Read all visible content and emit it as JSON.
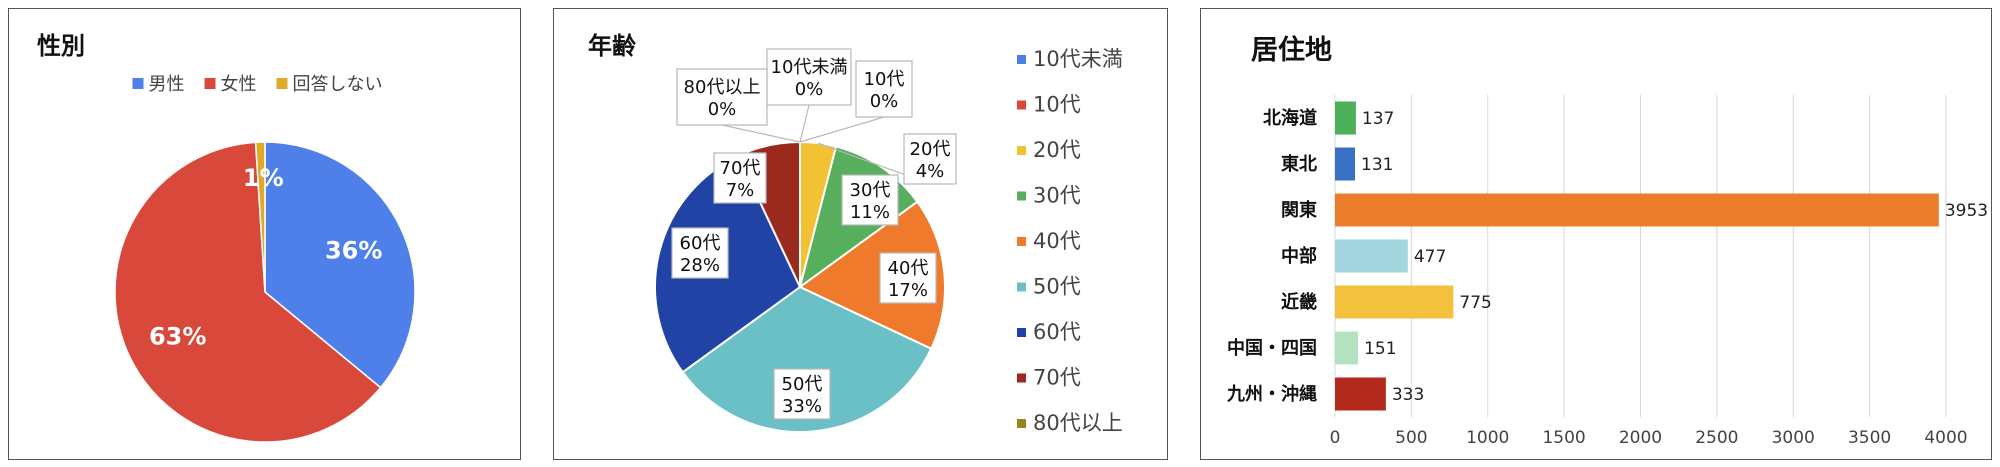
{
  "chart_data": [
    {
      "type": "pie",
      "title": "性別",
      "legend_position": "top",
      "categories": [
        "男性",
        "女性",
        "回答しない"
      ],
      "values": [
        36,
        63,
        1
      ],
      "labels": [
        "36%",
        "63%",
        "1%"
      ],
      "colors": [
        "#4f7fe8",
        "#d9493b",
        "#e0a92a"
      ]
    },
    {
      "type": "pie",
      "title": "年齢",
      "legend_position": "right",
      "categories": [
        "10代未満",
        "10代",
        "20代",
        "30代",
        "40代",
        "50代",
        "60代",
        "70代",
        "80代以上"
      ],
      "values": [
        0,
        0,
        4,
        11,
        17,
        33,
        28,
        7,
        0
      ],
      "labels": [
        "10代未満\n0%",
        "10代\n0%",
        "20代\n4%",
        "30代\n11%",
        "40代\n17%",
        "50代\n33%",
        "60代\n28%",
        "70代\n7%",
        "80代以上\n0%"
      ],
      "colors": [
        "#4a7ee0",
        "#d8473a",
        "#f2c234",
        "#57ae5d",
        "#ef7a2c",
        "#6bbfc6",
        "#2243a6",
        "#9b2a1e",
        "#9a8420"
      ]
    },
    {
      "type": "bar",
      "orientation": "horizontal",
      "title": "居住地",
      "categories": [
        "北海道",
        "東北",
        "関東",
        "中部",
        "近畿",
        "中国・四国",
        "九州・沖縄"
      ],
      "values": [
        137,
        131,
        3953,
        477,
        775,
        151,
        333
      ],
      "colors": [
        "#4caf5a",
        "#3a70c4",
        "#ea7e2c",
        "#a3d6de",
        "#f4c13f",
        "#b2e2bf",
        "#b22a1c"
      ],
      "xlim": [
        0,
        4000
      ],
      "xticks": [
        0,
        500,
        1000,
        1500,
        2000,
        2500,
        3000,
        3500,
        4000
      ],
      "grid": true
    }
  ]
}
